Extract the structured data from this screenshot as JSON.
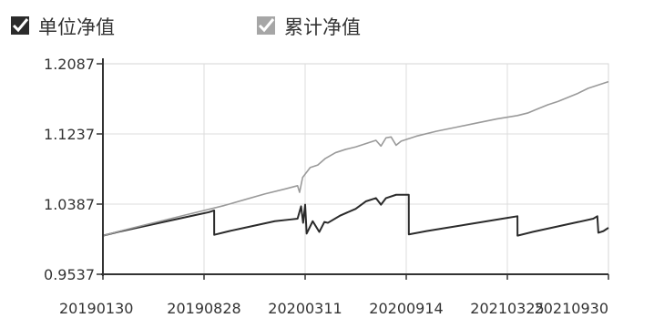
{
  "legend": {
    "items": [
      {
        "label": "单位净值",
        "checked": true,
        "color": "#2b2b2b",
        "box_color": "#2b2b2b"
      },
      {
        "label": "累计净值",
        "checked": true,
        "color": "#9a9a9a",
        "box_color": "#a6a6a6"
      }
    ]
  },
  "chart_data": {
    "type": "line",
    "title": "",
    "xlabel": "",
    "ylabel": "",
    "ylim": [
      0.9537,
      1.2087
    ],
    "y_ticks": [
      "1.2087",
      "1.1237",
      "1.0387",
      "0.9537"
    ],
    "x_ticks": [
      "20190130",
      "20190828",
      "20200311",
      "20200914",
      "20210325",
      "20210930"
    ],
    "grid": true,
    "legend_position": "top-left",
    "x_index_range": [
      0,
      100
    ],
    "series": [
      {
        "name": "单位净值",
        "color": "#2b2b2b",
        "points": [
          [
            0,
            1.0005
          ],
          [
            3,
            1.005
          ],
          [
            6,
            1.009
          ],
          [
            9,
            1.013
          ],
          [
            12,
            1.017
          ],
          [
            15,
            1.021
          ],
          [
            18,
            1.025
          ],
          [
            21,
            1.029
          ],
          [
            22,
            1.031
          ],
          [
            22.01,
            1.0015
          ],
          [
            25,
            1.006
          ],
          [
            28,
            1.01
          ],
          [
            31,
            1.014
          ],
          [
            34,
            1.018
          ],
          [
            37,
            1.02
          ],
          [
            38.5,
            1.021
          ],
          [
            39.2,
            1.036
          ],
          [
            39.6,
            1.016
          ],
          [
            40,
            1.038
          ],
          [
            40.3,
            1.003
          ],
          [
            41.5,
            1.018
          ],
          [
            42.8,
            1.005
          ],
          [
            43.8,
            1.017
          ],
          [
            44.5,
            1.016
          ],
          [
            47,
            1.025
          ],
          [
            50,
            1.033
          ],
          [
            52,
            1.042
          ],
          [
            54,
            1.046
          ],
          [
            55,
            1.038
          ],
          [
            56,
            1.046
          ],
          [
            58,
            1.05
          ],
          [
            60.5,
            1.05
          ],
          [
            60.51,
            1.002
          ],
          [
            64,
            1.006
          ],
          [
            68,
            1.01
          ],
          [
            72,
            1.014
          ],
          [
            76,
            1.018
          ],
          [
            80,
            1.022
          ],
          [
            82,
            1.024
          ],
          [
            82.01,
            1.0005
          ],
          [
            85,
            1.005
          ],
          [
            88,
            1.009
          ],
          [
            91,
            1.013
          ],
          [
            94,
            1.017
          ],
          [
            97,
            1.021
          ],
          [
            97.8,
            1.024
          ],
          [
            98,
            1.004
          ],
          [
            99,
            1.006
          ],
          [
            100,
            1.01
          ]
        ]
      },
      {
        "name": "累计净值",
        "color": "#9a9a9a",
        "points": [
          [
            0,
            1.0005
          ],
          [
            4,
            1.007
          ],
          [
            8,
            1.013
          ],
          [
            12,
            1.019
          ],
          [
            16,
            1.025
          ],
          [
            20,
            1.031
          ],
          [
            24,
            1.037
          ],
          [
            28,
            1.044
          ],
          [
            32,
            1.051
          ],
          [
            36,
            1.057
          ],
          [
            38.5,
            1.061
          ],
          [
            38.9,
            1.053
          ],
          [
            39.5,
            1.071
          ],
          [
            41,
            1.083
          ],
          [
            42.5,
            1.086
          ],
          [
            44,
            1.094
          ],
          [
            46,
            1.101
          ],
          [
            48,
            1.105
          ],
          [
            50,
            1.108
          ],
          [
            52,
            1.112
          ],
          [
            54,
            1.116
          ],
          [
            55,
            1.109
          ],
          [
            56,
            1.119
          ],
          [
            57,
            1.12
          ],
          [
            58,
            1.11
          ],
          [
            59,
            1.115
          ],
          [
            62,
            1.121
          ],
          [
            66,
            1.127
          ],
          [
            70,
            1.132
          ],
          [
            74,
            1.137
          ],
          [
            78,
            1.142
          ],
          [
            82,
            1.146
          ],
          [
            84,
            1.149
          ],
          [
            86,
            1.154
          ],
          [
            88,
            1.159
          ],
          [
            90,
            1.163
          ],
          [
            92,
            1.168
          ],
          [
            94,
            1.173
          ],
          [
            96,
            1.179
          ],
          [
            98,
            1.183
          ],
          [
            100,
            1.187
          ]
        ]
      }
    ]
  }
}
